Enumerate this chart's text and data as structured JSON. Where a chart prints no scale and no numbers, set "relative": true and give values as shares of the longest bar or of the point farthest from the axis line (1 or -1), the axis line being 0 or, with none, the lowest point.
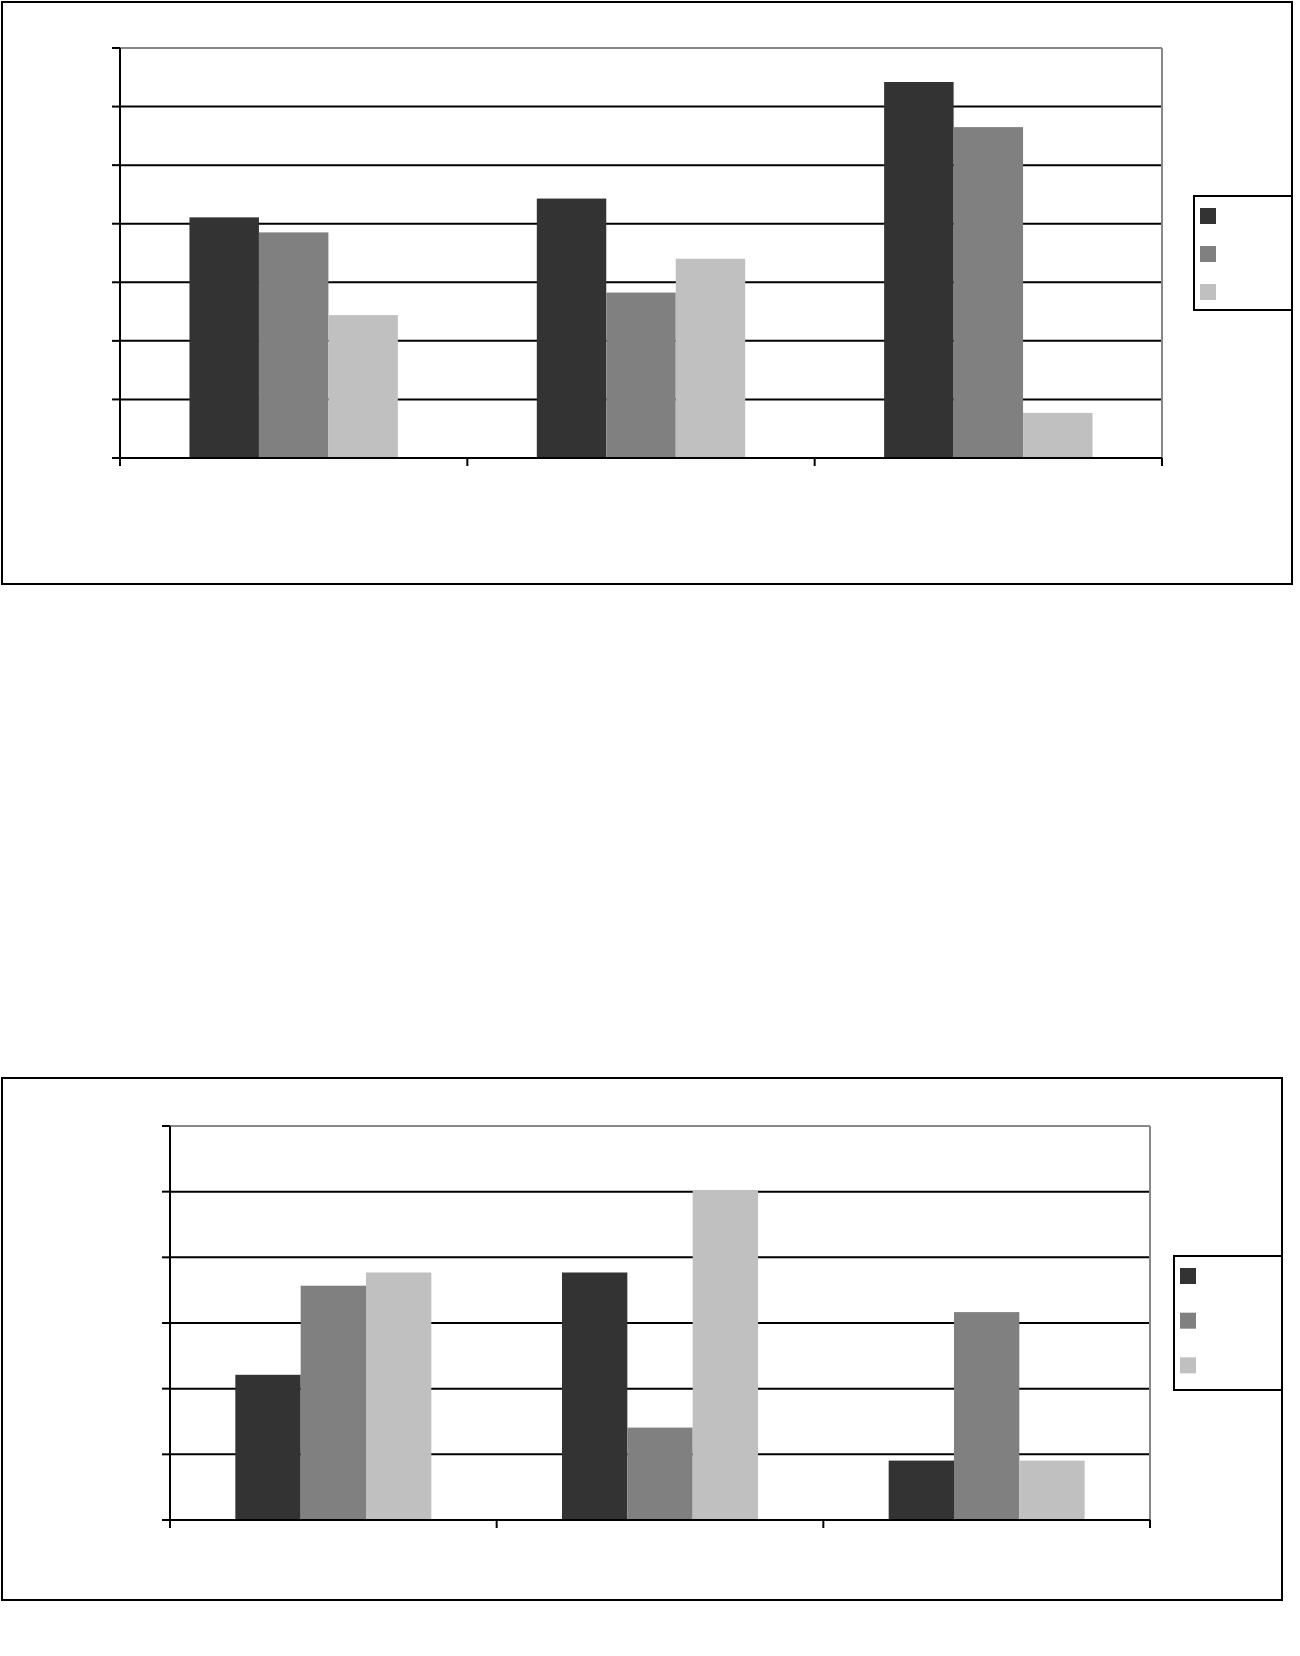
{
  "chart_data": [
    {
      "type": "bar",
      "relative": true,
      "categories": [
        null,
        null,
        null
      ],
      "grid": true,
      "series": [
        {
          "color": "#333333",
          "values": [
            0.64,
            0.69,
            1
          ]
        },
        {
          "color": "#808080",
          "values": [
            0.6,
            0.44,
            0.88
          ]
        },
        {
          "color": "#c0c0c0",
          "values": [
            0.38,
            0.53,
            0.12
          ]
        }
      ]
    },
    {
      "type": "bar",
      "relative": true,
      "categories": [
        null,
        null,
        null
      ],
      "grid": true,
      "series": [
        {
          "color": "#333333",
          "values": [
            0.44,
            0.75,
            0.18
          ]
        },
        {
          "color": "#808080",
          "values": [
            0.71,
            0.28,
            0.63
          ]
        },
        {
          "color": "#c0c0c0",
          "values": [
            0.75,
            1,
            0.18
          ]
        }
      ]
    }
  ]
}
